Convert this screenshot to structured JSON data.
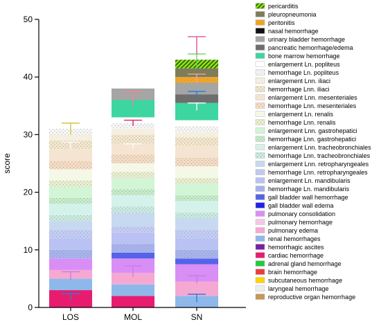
{
  "chart_data": {
    "type": "bar",
    "stacked": true,
    "ylabel": "score",
    "xlabel": "",
    "ylim": [
      0,
      50
    ],
    "yticks": [
      0,
      10,
      20,
      30,
      40,
      50
    ],
    "categories": [
      "LOS",
      "MOL",
      "SN"
    ],
    "legend_position": "right",
    "series": [
      {
        "name": "reproductive organ hemorrhage",
        "color": "#c8955a",
        "pattern": "none",
        "values": [
          0,
          0,
          0
        ]
      },
      {
        "name": "laryngeal hemorrhage",
        "color": "#eeeeee",
        "pattern": "none",
        "values": [
          0,
          0,
          0
        ]
      },
      {
        "name": "subcutaneous hemorrhage",
        "color": "#ffd200",
        "pattern": "none",
        "values": [
          0,
          0,
          0
        ]
      },
      {
        "name": "brain hemorrhage",
        "color": "#ef3b3b",
        "pattern": "none",
        "values": [
          0,
          0,
          0
        ]
      },
      {
        "name": "adrenal gland hemorrhage",
        "color": "#27c940",
        "pattern": "none",
        "values": [
          0,
          0,
          0
        ]
      },
      {
        "name": "cardiac hemorrhage",
        "color": "#e81c6e",
        "pattern": "none",
        "values": [
          3,
          2,
          0
        ]
      },
      {
        "name": "hemorrhagic ascites",
        "color": "#7a1fa2",
        "pattern": "none",
        "values": [
          0,
          0,
          0
        ]
      },
      {
        "name": "renal hemorrhages",
        "color": "#8fb8ea",
        "pattern": "none",
        "values": [
          2,
          2,
          2
        ]
      },
      {
        "name": "pulmonary edema",
        "color": "#f5a9d2",
        "pattern": "none",
        "values": [
          1.5,
          2,
          2.5
        ]
      },
      {
        "name": "pulmonary hemorrhage",
        "color": "#f5c8ea",
        "pattern": "none",
        "values": [
          0,
          0,
          0
        ]
      },
      {
        "name": "pulmonary consolidation",
        "color": "#d98ef5",
        "pattern": "none",
        "values": [
          2,
          2.5,
          3
        ]
      },
      {
        "name": "gall bladder wall edema",
        "color": "#1e24e6",
        "pattern": "none",
        "values": [
          0,
          0,
          0
        ]
      },
      {
        "name": "gall bladder wall hemorrhage",
        "color": "#5563e8",
        "pattern": "none",
        "values": [
          0,
          1,
          1
        ]
      },
      {
        "name": "hemorrhage Ln. mandibularis",
        "color": "#a7b4ef",
        "pattern": "dots",
        "values": [
          1.5,
          1.5,
          1.5
        ]
      },
      {
        "name": "enlargement Ln. mandibularis",
        "color": "#b9c2f2",
        "pattern": "none",
        "values": [
          2,
          2,
          2
        ]
      },
      {
        "name": "hemorrhage Lnn. retropharyngeales",
        "color": "#c4cdf5",
        "pattern": "dots",
        "values": [
          1.5,
          1,
          1.5
        ]
      },
      {
        "name": "enlargement Lnn. retropharyngeales",
        "color": "#c7d9f0",
        "pattern": "none",
        "values": [
          1.5,
          2.5,
          2
        ]
      },
      {
        "name": "hemorrhage Lnn. tracheobronchiales",
        "color": "#c9eae0",
        "pattern": "dots",
        "values": [
          1,
          1,
          1
        ]
      },
      {
        "name": "enlargement Lnn. tracheobronchiales",
        "color": "#d5f2ea",
        "pattern": "none",
        "values": [
          2,
          2,
          2
        ]
      },
      {
        "name": "hemorrhage Lnn. gastrohepatici",
        "color": "#c5ecc9",
        "pattern": "dots",
        "values": [
          1,
          1,
          1
        ]
      },
      {
        "name": "enlargement Lnn. gastrohepatici",
        "color": "#d2f5d6",
        "pattern": "none",
        "values": [
          2,
          2,
          2
        ]
      },
      {
        "name": "hemorrhage Lnn. renalis",
        "color": "#eaeecf",
        "pattern": "dots",
        "values": [
          1,
          1,
          1
        ]
      },
      {
        "name": "enlargement Ln. renalis",
        "color": "#f5f8e6",
        "pattern": "none",
        "values": [
          2,
          1.5,
          2
        ]
      },
      {
        "name": "hemorrhage Lnn. mesenteriales",
        "color": "#f5dcc4",
        "pattern": "dots",
        "values": [
          1.5,
          1.5,
          1.5
        ]
      },
      {
        "name": "enlargement Lnn. mesenteriales",
        "color": "#f5e4d2",
        "pattern": "none",
        "values": [
          2,
          2,
          2
        ]
      },
      {
        "name": "hemorrhage Lnn. iliaci",
        "color": "#f2e6cc",
        "pattern": "dots",
        "values": [
          1.5,
          1.5,
          1.5
        ]
      },
      {
        "name": "enlargement Lnn. iliaci",
        "color": "#f5efe0",
        "pattern": "none",
        "values": [
          1,
          1,
          1
        ]
      },
      {
        "name": "hemorrhage Ln. popliteus",
        "color": "#f7f7f7",
        "pattern": "dots",
        "values": [
          1,
          1,
          1
        ]
      },
      {
        "name": "enlargement Ln. popliteus",
        "color": "#ffffff",
        "pattern": "none",
        "values": [
          0.5,
          1,
          1
        ]
      },
      {
        "name": "bone marrow hemorrhage",
        "color": "#3dd6a0",
        "pattern": "none",
        "values": [
          0,
          3,
          3
        ]
      },
      {
        "name": "pancreatic hemorrhage/edema",
        "color": "#6e6e6e",
        "pattern": "none",
        "values": [
          0,
          0,
          1.5
        ]
      },
      {
        "name": "urinary bladder hemorrhage",
        "color": "#a5a5a5",
        "pattern": "none",
        "values": [
          0,
          2,
          2
        ]
      },
      {
        "name": "nasal hemorrhage",
        "color": "#111111",
        "pattern": "none",
        "values": [
          0,
          0,
          0
        ]
      },
      {
        "name": "peritonitis",
        "color": "#f5a623",
        "pattern": "dots",
        "values": [
          0,
          0,
          1
        ]
      },
      {
        "name": "pleuropneumonia",
        "color": "#7d7d5a",
        "pattern": "none",
        "values": [
          0,
          0,
          1.5
        ]
      },
      {
        "name": "pericarditis",
        "color": "#8ee01e",
        "pattern": "stripes",
        "values": [
          0,
          0,
          1.5
        ]
      }
    ],
    "error_bars": [
      {
        "category": "LOS",
        "series": "renal hemorrhages",
        "low": 1.2,
        "high": 2.4,
        "color": "#2c7fd6"
      },
      {
        "category": "LOS",
        "series": "pulmonary consolidation",
        "low": 4.7,
        "high": 6.2,
        "color": "#c77ce8"
      },
      {
        "category": "LOS",
        "series": "enlargement Lnn. iliaci",
        "low": 27.4,
        "high": 28.7,
        "color": "#ffffff"
      },
      {
        "category": "LOS",
        "series": "cardiac hemorrhage",
        "low": 30.0,
        "high": 32.0,
        "color": "#d6c43c"
      },
      {
        "category": "MOL",
        "series": "pulmonary consolidation",
        "low": 5.3,
        "high": 7.2,
        "color": "#c77ce8"
      },
      {
        "category": "MOL",
        "series": "urinary bladder hemorrhage",
        "low": 27.6,
        "high": 28.4,
        "color": "#ffffff"
      },
      {
        "category": "MOL",
        "series": "bone marrow hemorrhage",
        "low": 31.5,
        "high": 32.5,
        "color": "#e81c6e"
      },
      {
        "category": "MOL",
        "series": "cardiac hemorrhage",
        "low": 35.0,
        "high": 37.5,
        "color": "#f08a8a"
      },
      {
        "category": "SN",
        "series": "renal hemorrhages",
        "low": 0.9,
        "high": 2.3,
        "color": "#2c7fd6"
      },
      {
        "category": "SN",
        "series": "pulmonary consolidation",
        "low": 4.2,
        "high": 5.5,
        "color": "#c77ce8"
      },
      {
        "category": "SN",
        "series": "urinary bladder hemorrhage",
        "low": 34.2,
        "high": 35.5,
        "color": "#ffffff"
      },
      {
        "category": "SN",
        "series": "pancreatic hemorrhage/edema",
        "low": 36.5,
        "high": 37.5,
        "color": "#2c7fd6"
      },
      {
        "category": "SN",
        "series": "pleuropneumonia",
        "low": 39.0,
        "high": 40.5,
        "color": "#f2a0b0"
      },
      {
        "category": "SN",
        "series": "pericarditis",
        "low": 41.5,
        "high": 44.0,
        "color": "#6bd060"
      },
      {
        "category": "SN",
        "series": "top",
        "low": 44.0,
        "high": 47.0,
        "color": "#e0509a"
      }
    ]
  }
}
